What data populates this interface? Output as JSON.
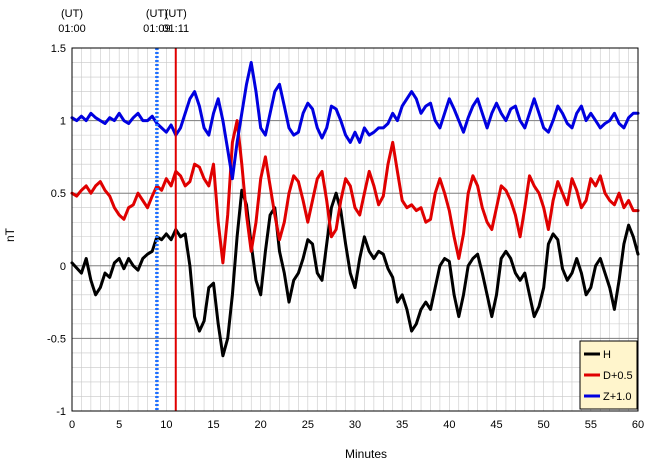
{
  "chart_data": {
    "type": "line",
    "title": "",
    "xlabel": "Minutes",
    "ylabel": "nT",
    "xlim": [
      0,
      60
    ],
    "ylim": [
      -1,
      1.5
    ],
    "x_ticks": [
      "0",
      "5",
      "10",
      "15",
      "20",
      "25",
      "30",
      "35",
      "40",
      "45",
      "50",
      "55",
      "60"
    ],
    "y_ticks": [
      "-1",
      "-0.5",
      "0",
      "0.5",
      "1",
      "1.5"
    ],
    "grid": true,
    "legend_position": "bottom-right",
    "markers": [
      {
        "x": 0,
        "label_top": "(UT)",
        "label_bottom": "01:00",
        "line": "none"
      },
      {
        "x": 9,
        "label_top": "(UT)",
        "label_bottom": "01:09",
        "line": "dotted",
        "color": "#1e6fff"
      },
      {
        "x": 11,
        "label_top": "(UT)",
        "label_bottom": "01:11",
        "line": "solid",
        "color": "#e00000"
      }
    ],
    "series": [
      {
        "name": "H",
        "color": "#000000",
        "x": [
          0,
          1,
          1.5,
          2,
          2.5,
          3,
          3.5,
          4,
          4.5,
          5,
          5.5,
          6,
          6.5,
          7,
          7.5,
          8,
          8.5,
          9,
          9.5,
          10,
          10.5,
          11,
          11.5,
          12,
          12.5,
          13,
          13.5,
          14,
          14.5,
          15,
          15.5,
          16,
          16.5,
          17,
          17.5,
          18,
          18.5,
          19,
          19.5,
          20,
          20.5,
          21,
          21.5,
          22,
          22.5,
          23,
          23.5,
          24,
          24.5,
          25,
          25.5,
          26,
          26.5,
          27,
          27.5,
          28,
          28.5,
          29,
          29.5,
          30,
          30.5,
          31,
          31.5,
          32,
          32.5,
          33,
          33.5,
          34,
          34.5,
          35,
          35.5,
          36,
          36.5,
          37,
          37.5,
          38,
          38.5,
          39,
          39.5,
          40,
          40.5,
          41,
          41.5,
          42,
          42.5,
          43,
          43.5,
          44,
          44.5,
          45,
          45.5,
          46,
          46.5,
          47,
          47.5,
          48,
          48.5,
          49,
          49.5,
          50,
          50.5,
          51,
          51.5,
          52,
          52.5,
          53,
          53.5,
          54,
          54.5,
          55,
          55.5,
          56,
          56.5,
          57,
          57.5,
          58,
          58.5,
          59,
          59.5,
          60
        ],
        "values": [
          0.02,
          -0.05,
          0.05,
          -0.1,
          -0.2,
          -0.15,
          -0.05,
          -0.08,
          0.02,
          0.05,
          -0.02,
          0.05,
          0.0,
          -0.03,
          0.05,
          0.08,
          0.1,
          0.2,
          0.18,
          0.22,
          0.18,
          0.25,
          0.2,
          0.22,
          0.0,
          -0.35,
          -0.45,
          -0.38,
          -0.15,
          -0.12,
          -0.4,
          -0.62,
          -0.5,
          -0.2,
          0.2,
          0.52,
          0.42,
          0.15,
          -0.1,
          -0.2,
          0.1,
          0.35,
          0.4,
          0.1,
          -0.05,
          -0.25,
          -0.1,
          -0.05,
          0.05,
          0.18,
          0.15,
          -0.05,
          -0.1,
          0.15,
          0.4,
          0.5,
          0.38,
          0.15,
          -0.05,
          -0.15,
          0.05,
          0.2,
          0.1,
          0.05,
          0.1,
          0.08,
          -0.02,
          -0.08,
          -0.25,
          -0.2,
          -0.3,
          -0.45,
          -0.4,
          -0.3,
          -0.25,
          -0.3,
          -0.15,
          0.0,
          0.05,
          0.03,
          -0.2,
          -0.35,
          -0.2,
          0.0,
          0.05,
          0.08,
          -0.05,
          -0.2,
          -0.35,
          -0.2,
          0.05,
          0.1,
          0.05,
          -0.05,
          -0.1,
          -0.05,
          -0.2,
          -0.35,
          -0.28,
          -0.15,
          0.15,
          0.22,
          0.18,
          -0.02,
          -0.1,
          -0.05,
          0.05,
          -0.05,
          -0.2,
          -0.15,
          0.0,
          0.05,
          -0.05,
          -0.15,
          -0.3,
          -0.1,
          0.15,
          0.28,
          0.2,
          0.08
        ]
      },
      {
        "name": "D+0.5",
        "color": "#e00000",
        "x": [
          0,
          0.5,
          1,
          1.5,
          2,
          2.5,
          3,
          3.5,
          4,
          4.5,
          5,
          5.5,
          6,
          6.5,
          7,
          7.5,
          8,
          8.5,
          9,
          9.5,
          10,
          10.5,
          11,
          11.5,
          12,
          12.5,
          13,
          13.5,
          14,
          14.5,
          15,
          15.5,
          16,
          16.5,
          17,
          17.5,
          18,
          18.5,
          19,
          19.5,
          20,
          20.5,
          21,
          21.5,
          22,
          22.5,
          23,
          23.5,
          24,
          24.5,
          25,
          25.5,
          26,
          26.5,
          27,
          27.5,
          28,
          28.5,
          29,
          29.5,
          30,
          30.5,
          31,
          31.5,
          32,
          32.5,
          33,
          33.5,
          34,
          34.5,
          35,
          35.5,
          36,
          36.5,
          37,
          37.5,
          38,
          38.5,
          39,
          39.5,
          40,
          40.5,
          41,
          41.5,
          42,
          42.5,
          43,
          43.5,
          44,
          44.5,
          45,
          45.5,
          46,
          46.5,
          47,
          47.5,
          48,
          48.5,
          49,
          49.5,
          50,
          50.5,
          51,
          51.5,
          52,
          52.5,
          53,
          53.5,
          54,
          54.5,
          55,
          55.5,
          56,
          56.5,
          57,
          57.5,
          58,
          58.5,
          59,
          59.5,
          60
        ],
        "values": [
          0.5,
          0.48,
          0.52,
          0.55,
          0.5,
          0.55,
          0.58,
          0.52,
          0.48,
          0.4,
          0.35,
          0.32,
          0.4,
          0.42,
          0.5,
          0.45,
          0.4,
          0.48,
          0.55,
          0.52,
          0.6,
          0.55,
          0.65,
          0.62,
          0.55,
          0.58,
          0.7,
          0.68,
          0.6,
          0.55,
          0.7,
          0.3,
          0.02,
          0.35,
          0.85,
          1.0,
          0.7,
          0.35,
          0.1,
          0.3,
          0.6,
          0.75,
          0.55,
          0.35,
          0.18,
          0.3,
          0.5,
          0.62,
          0.58,
          0.45,
          0.3,
          0.45,
          0.6,
          0.65,
          0.45,
          0.2,
          0.25,
          0.45,
          0.6,
          0.55,
          0.4,
          0.35,
          0.5,
          0.65,
          0.55,
          0.42,
          0.48,
          0.7,
          0.85,
          0.65,
          0.45,
          0.4,
          0.42,
          0.38,
          0.4,
          0.3,
          0.32,
          0.5,
          0.6,
          0.5,
          0.38,
          0.2,
          0.05,
          0.22,
          0.5,
          0.62,
          0.55,
          0.4,
          0.3,
          0.25,
          0.4,
          0.55,
          0.52,
          0.45,
          0.35,
          0.2,
          0.4,
          0.62,
          0.55,
          0.5,
          0.4,
          0.25,
          0.45,
          0.58,
          0.5,
          0.42,
          0.6,
          0.52,
          0.4,
          0.45,
          0.6,
          0.55,
          0.62,
          0.5,
          0.45,
          0.42,
          0.5,
          0.4,
          0.45,
          0.38,
          0.38
        ]
      },
      {
        "name": "Z+1.0",
        "color": "#0000e0",
        "x": [
          0,
          0.5,
          1,
          1.5,
          2,
          2.5,
          3,
          3.5,
          4,
          4.5,
          5,
          5.5,
          6,
          6.5,
          7,
          7.5,
          8,
          8.5,
          9,
          9.5,
          10,
          10.5,
          11,
          11.5,
          12,
          12.5,
          13,
          13.5,
          14,
          14.5,
          15,
          15.5,
          16,
          16.5,
          17,
          17.5,
          18,
          18.5,
          19,
          19.5,
          20,
          20.5,
          21,
          21.5,
          22,
          22.5,
          23,
          23.5,
          24,
          24.5,
          25,
          25.5,
          26,
          26.5,
          27,
          27.5,
          28,
          28.5,
          29,
          29.5,
          30,
          30.5,
          31,
          31.5,
          32,
          32.5,
          33,
          33.5,
          34,
          34.5,
          35,
          35.5,
          36,
          36.5,
          37,
          37.5,
          38,
          38.5,
          39,
          39.5,
          40,
          40.5,
          41,
          41.5,
          42,
          42.5,
          43,
          43.5,
          44,
          44.5,
          45,
          45.5,
          46,
          46.5,
          47,
          47.5,
          48,
          48.5,
          49,
          49.5,
          50,
          50.5,
          51,
          51.5,
          52,
          52.5,
          53,
          53.5,
          54,
          54.5,
          55,
          55.5,
          56,
          56.5,
          57,
          57.5,
          58,
          58.5,
          59,
          59.5,
          60
        ],
        "values": [
          1.02,
          1.0,
          1.03,
          1.0,
          1.05,
          1.02,
          1.0,
          0.98,
          1.02,
          1.0,
          1.05,
          1.0,
          0.98,
          1.02,
          1.05,
          1.0,
          1.0,
          1.03,
          0.98,
          0.95,
          0.92,
          0.97,
          0.9,
          0.95,
          1.05,
          1.15,
          1.2,
          1.1,
          0.95,
          0.9,
          1.05,
          1.15,
          1.0,
          0.8,
          0.6,
          0.85,
          1.05,
          1.25,
          1.4,
          1.2,
          0.95,
          0.9,
          1.05,
          1.2,
          1.25,
          1.1,
          0.95,
          0.9,
          0.92,
          1.05,
          1.12,
          1.08,
          0.95,
          0.88,
          0.95,
          1.1,
          1.08,
          1.0,
          0.9,
          0.85,
          0.92,
          0.85,
          0.95,
          0.9,
          0.92,
          0.95,
          0.95,
          0.98,
          1.05,
          1.0,
          1.1,
          1.15,
          1.2,
          1.15,
          1.05,
          1.1,
          1.12,
          1.0,
          0.95,
          1.05,
          1.15,
          1.08,
          1.0,
          0.92,
          1.02,
          1.1,
          1.15,
          1.05,
          0.95,
          1.05,
          1.12,
          1.05,
          1.0,
          1.08,
          1.1,
          1.0,
          0.95,
          1.05,
          1.15,
          1.05,
          0.95,
          0.92,
          1.0,
          1.1,
          1.05,
          0.98,
          0.95,
          1.05,
          1.1,
          1.0,
          1.05,
          1.0,
          0.95,
          0.98,
          1.0,
          1.05,
          0.98,
          0.95,
          1.02,
          1.05,
          1.05
        ]
      }
    ]
  }
}
